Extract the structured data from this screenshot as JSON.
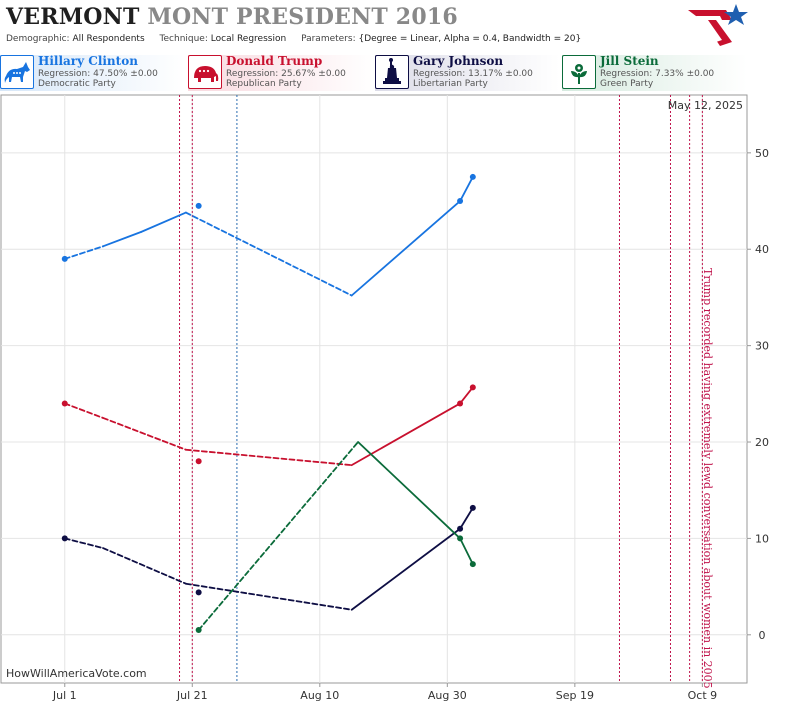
{
  "header": {
    "title_state": "VERMONT",
    "title_rest": "MONT PRESIDENT 2016",
    "demographic_label": "Demographic:",
    "demographic_value": "All Respondents",
    "technique_label": "Technique:",
    "technique_value": "Local Regression",
    "parameters_label": "Parameters:",
    "parameters_value": "{Degree = Linear, Alpha = 0.4, Bandwidth = 20}"
  },
  "candidates": [
    {
      "name": "Hillary Clinton",
      "regression": "Regression: 47.50% ±0.00",
      "party": "Democratic Party",
      "color": "#1874e0",
      "icon": "donkey-icon",
      "bg": "#d7e7f8"
    },
    {
      "name": "Donald Trump",
      "regression": "Regression: 25.67% ±0.00",
      "party": "Republican Party",
      "color": "#c8102e",
      "icon": "elephant-icon",
      "bg": "#f8d9df"
    },
    {
      "name": "Gary Johnson",
      "regression": "Regression: 13.17% ±0.00",
      "party": "Libertarian Party",
      "color": "#0e0e44",
      "icon": "statue-of-liberty-icon",
      "bg": "#dcdce8"
    },
    {
      "name": "Jill Stein",
      "regression": "Regression: 7.33% ±0.00",
      "party": "Green Party",
      "color": "#0b6b3a",
      "icon": "flower-icon",
      "bg": "#d6eadf"
    }
  ],
  "chart_data": {
    "type": "line",
    "date_label": "May 12, 2025",
    "watermark": "HowWillAmericaVote.com",
    "annotation": "Trump recorded having extremely lewd conversation about women in 2005",
    "x_ticks": [
      "Jul 1",
      "Jul 21",
      "Aug 10",
      "Aug 30",
      "Sep 19",
      "Oct 9"
    ],
    "x_range": [
      "2016-06-21",
      "2016-10-16"
    ],
    "y_ticks": [
      0,
      10,
      20,
      30,
      40,
      50
    ],
    "ylim": [
      -5,
      56
    ],
    "grid": true,
    "event_lines": [
      {
        "date": "2016-07-19",
        "color": "#c0144c"
      },
      {
        "date": "2016-07-21",
        "color": "#c0144c"
      },
      {
        "date": "2016-07-28",
        "color": "#2a6cb0"
      },
      {
        "date": "2016-09-26",
        "color": "#c0144c"
      },
      {
        "date": "2016-10-04",
        "color": "#c0144c"
      },
      {
        "date": "2016-10-07",
        "color": "#c0144c"
      },
      {
        "date": "2016-10-09",
        "color": "#c0144c"
      }
    ],
    "series": [
      {
        "name": "Hillary Clinton",
        "color": "#1874e0",
        "line": [
          [
            "2016-07-01",
            39.0
          ],
          [
            "2016-07-07",
            40.3
          ],
          [
            "2016-07-13",
            41.8
          ],
          [
            "2016-07-20",
            43.8
          ],
          [
            "2016-08-15",
            35.2
          ],
          [
            "2016-09-01",
            45.0
          ],
          [
            "2016-09-03",
            47.5
          ]
        ],
        "dashed_segments": [
          [
            0,
            1
          ],
          [
            3,
            4
          ]
        ],
        "points": [
          [
            "2016-07-01",
            39.0
          ],
          [
            "2016-07-22",
            44.5
          ],
          [
            "2016-09-01",
            45.0
          ],
          [
            "2016-09-03",
            47.5
          ]
        ]
      },
      {
        "name": "Donald Trump",
        "color": "#c8102e",
        "line": [
          [
            "2016-07-01",
            24.0
          ],
          [
            "2016-07-07",
            22.5
          ],
          [
            "2016-07-20",
            19.2
          ],
          [
            "2016-08-15",
            17.6
          ],
          [
            "2016-09-01",
            24.0
          ],
          [
            "2016-09-03",
            25.67
          ]
        ],
        "dashed_segments": [
          [
            0,
            1
          ],
          [
            1,
            2
          ],
          [
            2,
            3
          ]
        ],
        "points": [
          [
            "2016-07-01",
            24.0
          ],
          [
            "2016-07-22",
            18.0
          ],
          [
            "2016-09-01",
            24.0
          ],
          [
            "2016-09-03",
            25.67
          ]
        ]
      },
      {
        "name": "Gary Johnson",
        "color": "#0e0e44",
        "line": [
          [
            "2016-07-01",
            10.0
          ],
          [
            "2016-07-07",
            9.0
          ],
          [
            "2016-07-20",
            5.3
          ],
          [
            "2016-08-15",
            2.6
          ],
          [
            "2016-09-01",
            11.0
          ],
          [
            "2016-09-03",
            13.17
          ]
        ],
        "dashed_segments": [
          [
            0,
            1
          ],
          [
            1,
            2
          ],
          [
            2,
            3
          ]
        ],
        "points": [
          [
            "2016-07-01",
            10.0
          ],
          [
            "2016-07-22",
            4.4
          ],
          [
            "2016-09-01",
            11.0
          ],
          [
            "2016-09-03",
            13.17
          ]
        ]
      },
      {
        "name": "Jill Stein",
        "color": "#0b6b3a",
        "line": [
          [
            "2016-07-22",
            0.5
          ],
          [
            "2016-08-16",
            20.0
          ],
          [
            "2016-09-01",
            10.0
          ],
          [
            "2016-09-03",
            7.33
          ]
        ],
        "dashed_segments": [
          [
            0,
            1
          ]
        ],
        "points": [
          [
            "2016-07-22",
            0.5
          ],
          [
            "2016-09-01",
            10.0
          ],
          [
            "2016-09-03",
            7.33
          ]
        ]
      }
    ]
  }
}
